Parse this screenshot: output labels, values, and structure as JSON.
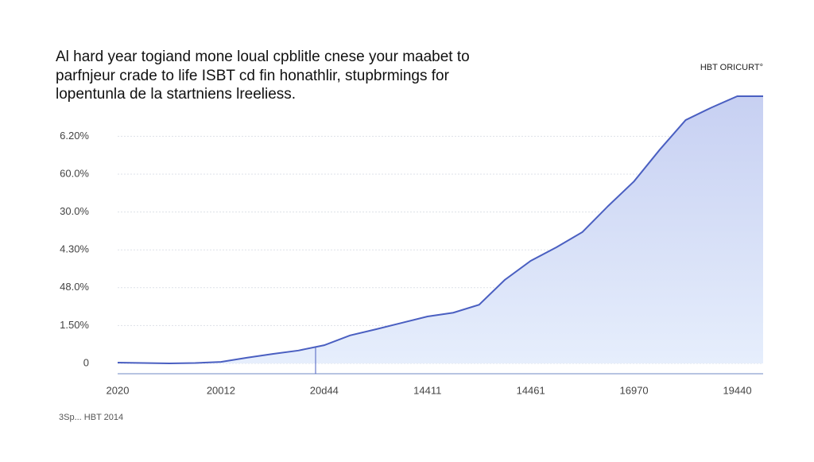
{
  "chart_data": {
    "type": "area",
    "title": [
      "Al hard year togiand mone loual cpblitle cnese your maabet to",
      "parfnjeur crade to life ISBT cd fin honathlir, stupbrmings for",
      "lopentunla de la startniens lreeliess."
    ],
    "source": "3Sp... HBT 2014",
    "categories": [
      "2020",
      null,
      null,
      null,
      "20012",
      null,
      null,
      null,
      "20d44",
      null,
      null,
      null,
      "14411",
      null,
      null,
      null,
      "14461",
      null,
      null,
      null,
      "16970",
      null,
      null,
      null,
      "19440",
      null
    ],
    "series": [
      {
        "name": "HBT ORICURT°",
        "color": "#4a5fc1",
        "values": [
          0.02,
          0.01,
          0,
          0.01,
          0.04,
          0.15,
          0.25,
          0.34,
          0.48,
          0.74,
          0.9,
          1.07,
          1.24,
          1.34,
          1.55,
          2.21,
          2.71,
          3.07,
          3.47,
          4.16,
          4.81,
          5.65,
          6.43,
          6.76,
          7.06,
          7.06
        ]
      }
    ],
    "ylim": [
      0,
      7.2
    ],
    "yticks": [
      0,
      {
        "value": 1,
        "label": "1.50%"
      },
      {
        "value": 2,
        "label": "48.0%"
      },
      {
        "value": 3,
        "label": "4.30%"
      },
      {
        "value": 4,
        "label": "30.0%"
      },
      {
        "value": 5,
        "label": "60.0%"
      },
      {
        "value": 6,
        "label": "6.20%"
      }
    ],
    "grid": true
  }
}
